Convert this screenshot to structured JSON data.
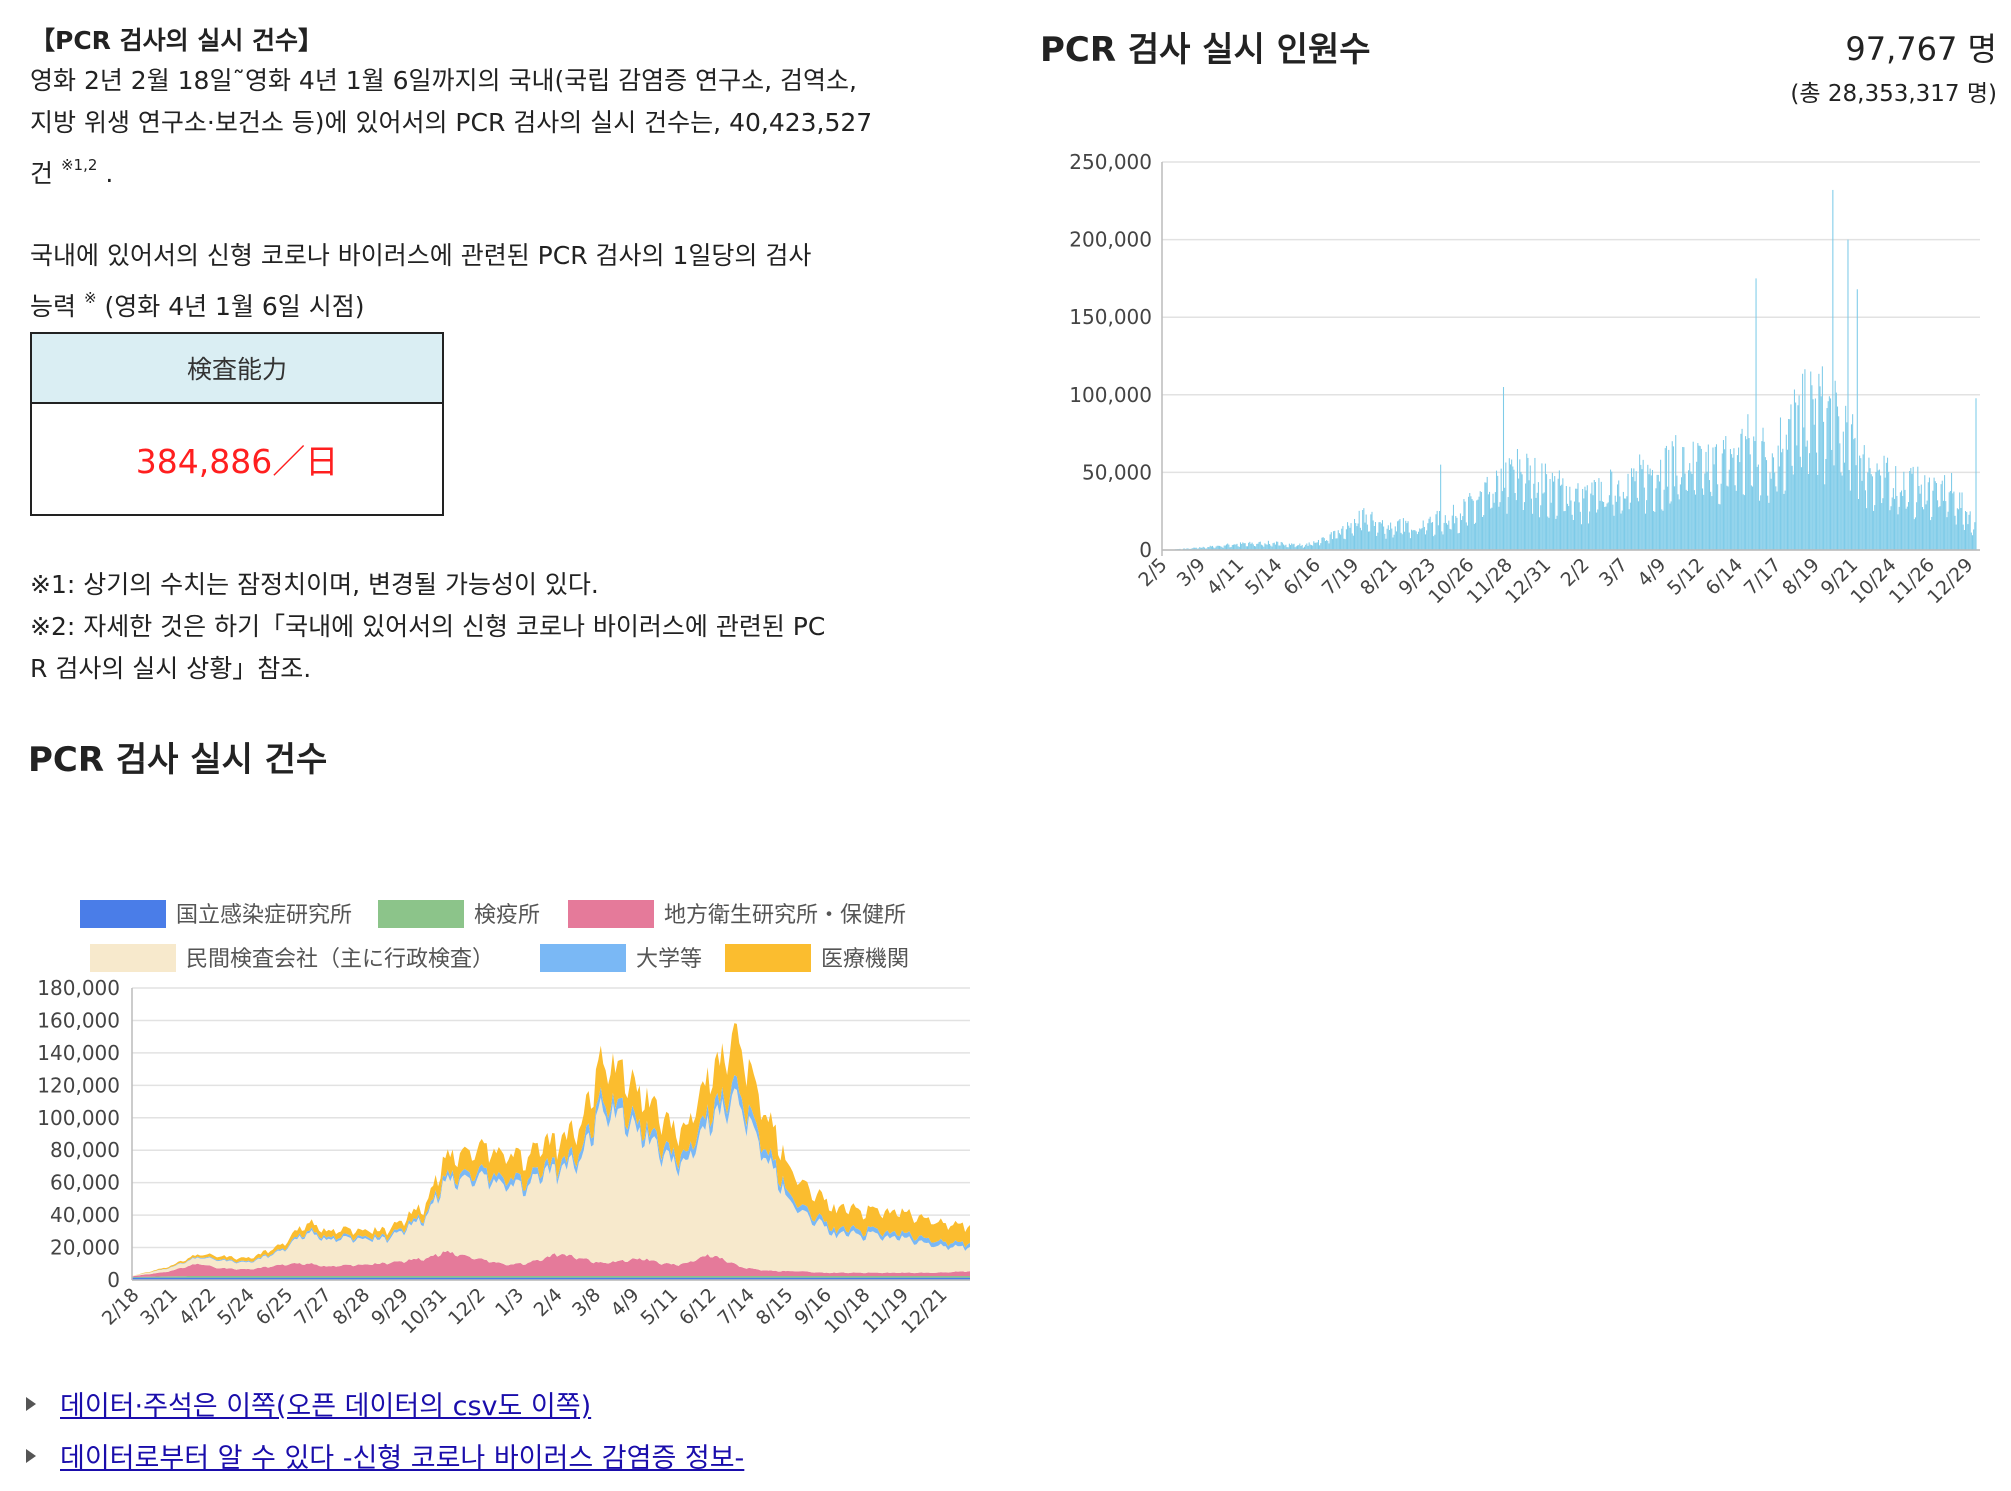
{
  "left": {
    "title": "【PCR 검사의 실시 건수】",
    "para1_lines": [
      "영화 2년 2월 18일˜영화 4년 1월 6일까지의 국내(국립 감염증 연구소, 검역소,",
      "지방 위생 연구소·보건소 등)에 있어서의 PCR 검사의 실시 건수는, 40,423,527"
    ],
    "para1_tail": "건",
    "para1_ref": "※1,2",
    "para1_end": ".",
    "para2_line1": "국내에 있어서의 신형 코로나 바이러스에 관련된 PCR 검사의 1일당의 검사",
    "para2_line2_a": "능력",
    "para2_ref": "※",
    "para2_line2_b": "(영화 4년 1월 6일 시점)",
    "capacity_header": "検査能力",
    "capacity_value": "384,886／日",
    "notes": [
      "※1: 상기의 수치는 잠정치이며, 변경될 가능성이 있다.",
      "※2: 자세한 것은 하기「국내에 있어서의 신형 코로나 바이러스에 관련된 PC",
      "R 검사의 실시 상황」참조."
    ],
    "section_title": "PCR 검사 실시 건수"
  },
  "right": {
    "title": "PCR 검사 실시 인원수",
    "count": "97,767 명",
    "total": "(총 28,353,317 명)"
  },
  "links": [
    "데이터·주석은 이쪽(오픈 데이터의 csv도 이쪽)",
    "데이터로부터 알 수 있다 -신형 코로나 바이러스 감염증 정보-"
  ],
  "colors": {
    "bar": "#7ecbe8",
    "national": "#4a7de8",
    "quarantine": "#8cc48a",
    "local": "#e57a9a",
    "private": "#f7e9cc",
    "university": "#7ab8f5",
    "medical": "#fbbd2f",
    "grid": "#e2e2e2",
    "link": "#1a0dab"
  },
  "chart_data": [
    {
      "type": "bar",
      "ylim": [
        0,
        250000
      ],
      "yticks": [
        "250,000",
        "200,000",
        "150,000",
        "100,000",
        "50,000",
        "0"
      ],
      "ytick_values": [
        250000,
        200000,
        150000,
        100000,
        50000,
        0
      ],
      "xticks": [
        "2/5",
        "3/9",
        "4/11",
        "5/14",
        "6/16",
        "7/19",
        "8/21",
        "9/23",
        "10/26",
        "11/28",
        "12/31",
        "2/2",
        "3/7",
        "4/9",
        "5/12",
        "6/14",
        "7/17",
        "8/19",
        "9/21",
        "10/24",
        "11/26",
        "12/29"
      ],
      "envelope": [
        [
          0,
          0
        ],
        [
          30,
          2000
        ],
        [
          60,
          5000
        ],
        [
          90,
          6000
        ],
        [
          120,
          4000
        ],
        [
          150,
          15000
        ],
        [
          170,
          28000
        ],
        [
          190,
          20000
        ],
        [
          220,
          22000
        ],
        [
          250,
          30000
        ],
        [
          280,
          50000
        ],
        [
          300,
          70000
        ],
        [
          330,
          55000
        ],
        [
          360,
          45000
        ],
        [
          400,
          60000
        ],
        [
          440,
          75000
        ],
        [
          470,
          72000
        ],
        [
          500,
          90000
        ],
        [
          520,
          80000
        ],
        [
          540,
          110000
        ],
        [
          560,
          125000
        ],
        [
          580,
          105000
        ],
        [
          600,
          75000
        ],
        [
          620,
          60000
        ],
        [
          640,
          55000
        ],
        [
          660,
          52000
        ],
        [
          675,
          50000
        ],
        [
          696,
          20000
        ]
      ],
      "spikes": [
        [
          236,
          55000
        ],
        [
          290,
          105000
        ],
        [
          507,
          175000
        ],
        [
          573,
          232000
        ],
        [
          586,
          200000
        ],
        [
          594,
          168000
        ]
      ],
      "last_value": 97767
    },
    {
      "type": "area",
      "stacked": true,
      "ylim": [
        0,
        180000
      ],
      "yticks": [
        "180,000",
        "160,000",
        "140,000",
        "120,000",
        "100,000",
        "80,000",
        "60,000",
        "40,000",
        "20,000",
        "0"
      ],
      "ytick_values": [
        180000,
        160000,
        140000,
        120000,
        100000,
        80000,
        60000,
        40000,
        20000,
        0
      ],
      "xticks": [
        "2/18",
        "3/21",
        "4/22",
        "5/24",
        "6/25",
        "7/27",
        "8/28",
        "9/29",
        "10/31",
        "12/2",
        "1/3",
        "2/4",
        "3/8",
        "4/9",
        "5/11",
        "6/12",
        "7/14",
        "8/15",
        "9/16",
        "10/18",
        "11/19",
        "12/21"
      ],
      "legend": [
        "国立感染症研究所",
        "検疫所",
        "地方衛生研究所・保健所",
        "民間検査会社（主に行政検査）",
        "大学等",
        "医療機関"
      ],
      "legend_placement": "top",
      "x_days": [
        0,
        30,
        55,
        70,
        95,
        125,
        145,
        160,
        190,
        210,
        240,
        260,
        290,
        310,
        325,
        340,
        350,
        370,
        385,
        400,
        420,
        435,
        450,
        465,
        475,
        485,
        500,
        515,
        530,
        540,
        550,
        570,
        580,
        590,
        600,
        610,
        620,
        635,
        660,
        690
      ],
      "series": [
        {
          "name": "国立感染症研究所",
          "values": [
            1500,
            1500,
            1500,
            1500,
            1500,
            1500,
            1500,
            1500,
            1500,
            1500,
            1500,
            1500,
            1500,
            1500,
            1500,
            1500,
            1500,
            1500,
            1500,
            1500,
            1500,
            1500,
            1500,
            1500,
            1500,
            1500,
            1500,
            1500,
            1500,
            1500,
            1500,
            1500,
            1500,
            1500,
            1500,
            1500,
            1500,
            1500,
            1500,
            1500
          ]
        },
        {
          "name": "検疫所",
          "values": [
            300,
            800,
            1000,
            1000,
            1000,
            1000,
            1000,
            1000,
            1000,
            1000,
            1000,
            1000,
            1000,
            1000,
            1000,
            1000,
            1000,
            1000,
            1000,
            1000,
            1000,
            1000,
            1000,
            1000,
            1000,
            1000,
            1000,
            1000,
            1000,
            1000,
            1000,
            1000,
            1000,
            1000,
            1000,
            1000,
            1000,
            1000,
            1000,
            1000
          ]
        },
        {
          "name": "地方衛生研究所・保健所",
          "values": [
            500,
            3000,
            8000,
            5000,
            4000,
            7000,
            8000,
            6000,
            7000,
            8000,
            11000,
            15000,
            10000,
            7000,
            8000,
            11000,
            14000,
            11000,
            8000,
            9000,
            11000,
            8000,
            7000,
            10000,
            13000,
            11000,
            6000,
            4000,
            3000,
            3000,
            3000,
            2000,
            2000,
            2000,
            2000,
            2000,
            2000,
            2000,
            2000,
            3000
          ]
        },
        {
          "name": "民間検査会社（主に行政検査）",
          "values": [
            200,
            2000,
            4000,
            5000,
            4000,
            9000,
            20000,
            17000,
            16000,
            15000,
            25000,
            45000,
            52000,
            50000,
            48000,
            55000,
            52000,
            62000,
            95000,
            92000,
            78000,
            70000,
            62000,
            70000,
            82000,
            92000,
            105000,
            82000,
            60000,
            45000,
            38000,
            30000,
            22000,
            26000,
            22000,
            25000,
            22000,
            22000,
            17000,
            15000
          ]
        },
        {
          "name": "大学等",
          "values": [
            0,
            200,
            500,
            600,
            600,
            800,
            1500,
            1500,
            1500,
            1500,
            2000,
            3000,
            4000,
            4000,
            4000,
            4000,
            4000,
            5000,
            6000,
            6000,
            5000,
            5000,
            5000,
            6000,
            6500,
            7000,
            8000,
            6000,
            5000,
            4000,
            3500,
            3000,
            3000,
            3000,
            3000,
            3000,
            3000,
            3000,
            3000,
            2500
          ]
        },
        {
          "name": "医療機関",
          "values": [
            0,
            800,
            1500,
            2000,
            2000,
            3000,
            5000,
            4000,
            4000,
            4000,
            6000,
            12000,
            15000,
            15000,
            14000,
            15000,
            14000,
            16000,
            24000,
            23000,
            20000,
            18000,
            16000,
            18000,
            22000,
            25000,
            32000,
            24000,
            20000,
            17000,
            15000,
            14000,
            13000,
            13000,
            12000,
            12000,
            13000,
            13000,
            12000,
            11000
          ]
        }
      ]
    }
  ]
}
